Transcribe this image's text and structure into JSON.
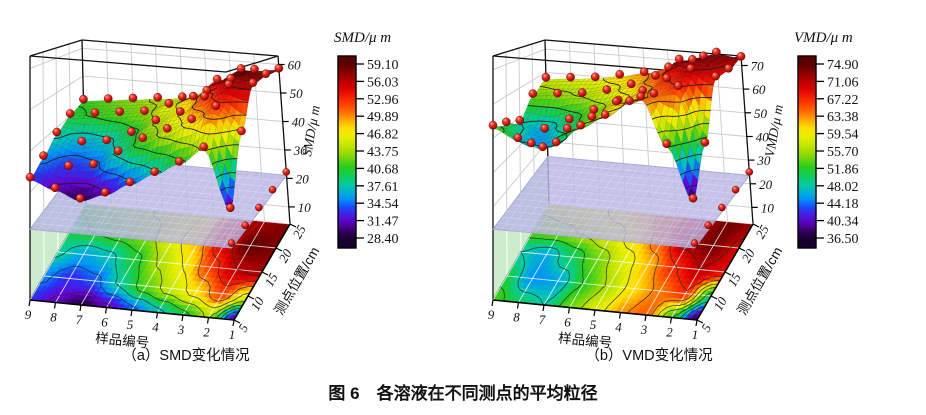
{
  "figure": {
    "caption": "图 6　各溶液在不同测点的平均粒径"
  },
  "accents": {
    "wall_green": "#cdeccd",
    "plane_lavender": "#b7b5e4",
    "sphere_red": "#cc1414",
    "contour_line": "#1b1b1b"
  },
  "colormap_stops": [
    [
      0.0,
      "#170030"
    ],
    [
      0.04,
      "#30005c"
    ],
    [
      0.1,
      "#6a00d8"
    ],
    [
      0.16,
      "#2a30f0"
    ],
    [
      0.22,
      "#0090ff"
    ],
    [
      0.3,
      "#00ccaa"
    ],
    [
      0.4,
      "#22cc22"
    ],
    [
      0.5,
      "#aadd00"
    ],
    [
      0.58,
      "#e8f000"
    ],
    [
      0.64,
      "#ffdd00"
    ],
    [
      0.7,
      "#ff8800"
    ],
    [
      0.78,
      "#ff3300"
    ],
    [
      0.86,
      "#dd0000"
    ],
    [
      0.93,
      "#a00000"
    ],
    [
      1.0,
      "#5a0000"
    ]
  ],
  "chart_data": [
    {
      "type": "heatmap",
      "representation": "3d-surface-with-contour-projection",
      "title": "（a）SMD变化情况",
      "x_label": "样品编号",
      "y_label": "测点位置/cm",
      "z_label": "SMD/μ m",
      "x_ticks": [
        "9",
        "8",
        "7",
        "6",
        "5",
        "4",
        "3",
        "2",
        "1"
      ],
      "y_ticks": [
        "5",
        "10",
        "15",
        "20",
        "25"
      ],
      "z_ticks": [
        "10",
        "20",
        "30",
        "40",
        "50",
        "60"
      ],
      "z_range": [
        4,
        63
      ],
      "colorbar": {
        "title": "SMD/μ m",
        "labels": [
          "59.10",
          "56.03",
          "52.96",
          "49.89",
          "46.82",
          "43.75",
          "40.68",
          "37.61",
          "34.54",
          "31.47",
          "28.40"
        ],
        "min": 28.4,
        "max": 59.1
      },
      "grid_note": "rows = 测点位置 5,10,15,20,25 (front to back); cols = 样品编号 9..1 (left to right); values in μm (estimated from surface colors)",
      "values": [
        [
          33,
          31,
          29,
          31,
          34,
          37,
          40,
          44,
          30
        ],
        [
          35,
          33,
          34,
          38,
          42,
          45,
          48,
          52,
          46
        ],
        [
          38,
          36,
          37,
          40,
          44,
          47,
          52,
          56,
          57
        ],
        [
          40,
          41,
          42,
          43,
          46,
          49,
          55,
          59,
          58
        ],
        [
          41,
          42,
          43,
          44,
          45,
          48,
          53,
          57,
          58
        ]
      ]
    },
    {
      "type": "heatmap",
      "representation": "3d-surface-with-contour-projection",
      "title": "（b）VMD变化情况",
      "x_label": "样品编号",
      "y_label": "测点位置/cm",
      "z_label": "VMD/μ m",
      "x_ticks": [
        "9",
        "8",
        "7",
        "6",
        "5",
        "4",
        "3",
        "2",
        "1"
      ],
      "y_ticks": [
        "5",
        "10",
        "15",
        "20",
        "25"
      ],
      "z_ticks": [
        "10",
        "20",
        "30",
        "40",
        "50",
        "60",
        "70"
      ],
      "z_range": [
        3,
        74
      ],
      "colorbar": {
        "title": "VMD/μ m",
        "labels": [
          "74.90",
          "71.06",
          "67.22",
          "63.38",
          "59.54",
          "55.70",
          "51.86",
          "48.02",
          "44.18",
          "40.34",
          "36.50"
        ],
        "min": 36.5,
        "max": 74.9
      },
      "grid_note": "rows = 测点位置 5,10,15,20,25 (front to back); cols = 样品编号 9..1 (left to right); values in μm (estimated from surface colors)",
      "values": [
        [
          53,
          50,
          48,
          54,
          58,
          63,
          65,
          52,
          37
        ],
        [
          51,
          45,
          46,
          52,
          56,
          61,
          64,
          67,
          50
        ],
        [
          48,
          46,
          50,
          54,
          58,
          62,
          67,
          71,
          69
        ],
        [
          54,
          55,
          56,
          58,
          61,
          65,
          72,
          74,
          70
        ],
        [
          57,
          58,
          59,
          61,
          63,
          66,
          70,
          74,
          73
        ]
      ]
    }
  ]
}
